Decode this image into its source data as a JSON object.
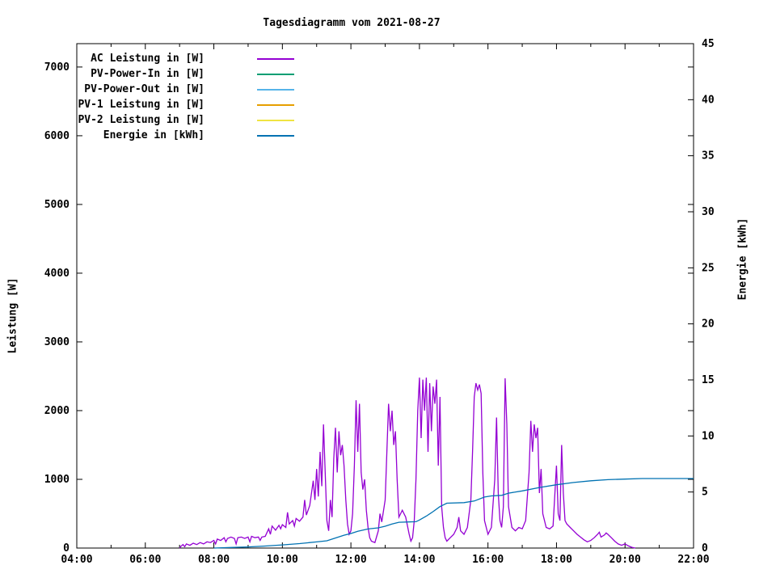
{
  "title": "Tagesdiagramm vom 2021-08-27",
  "chart_data": {
    "type": "line",
    "title": "Tagesdiagramm vom 2021-08-27",
    "xlabel": "",
    "ylabel_left": "Leistung [W]",
    "ylabel_right": "Energie [kWh]",
    "x_range_hours": [
      4,
      22
    ],
    "y_left_range": [
      0,
      7340
    ],
    "y_right_range": [
      0,
      45
    ],
    "grid": false,
    "legend_position": "top-left-inside",
    "x_tick_hours": [
      4,
      6,
      8,
      10,
      12,
      14,
      16,
      18,
      20,
      22
    ],
    "x_tick_labels": [
      "04:00",
      "06:00",
      "08:00",
      "10:00",
      "12:00",
      "14:00",
      "16:00",
      "18:00",
      "20:00",
      "22:00"
    ],
    "x_minor_hours": [
      5,
      7,
      9,
      11,
      13,
      15,
      17,
      19,
      21
    ],
    "y_left_ticks": [
      0,
      1000,
      2000,
      3000,
      4000,
      5000,
      6000,
      7000
    ],
    "y_right_ticks": [
      0,
      5,
      10,
      15,
      20,
      25,
      30,
      35,
      40,
      45
    ],
    "legend": [
      {
        "label": "AC Leistung in [W]",
        "color": "#9400D3"
      },
      {
        "label": "PV-Power-In in [W]",
        "color": "#009E73"
      },
      {
        "label": "PV-Power-Out in [W]",
        "color": "#56B4E9"
      },
      {
        "label": "PV-1 Leistung in [W]",
        "color": "#E69F00"
      },
      {
        "label": "PV-2 Leistung in [W]",
        "color": "#F0E442"
      },
      {
        "label": "Energie in [kWh]",
        "color": "#0072B2"
      }
    ],
    "series": [
      {
        "name": "AC Leistung in [W]",
        "color": "#9400D3",
        "axis": "left",
        "points": [
          [
            7.0,
            0
          ],
          [
            7.05,
            30
          ],
          [
            7.1,
            50
          ],
          [
            7.15,
            20
          ],
          [
            7.2,
            60
          ],
          [
            7.3,
            40
          ],
          [
            7.4,
            70
          ],
          [
            7.5,
            50
          ],
          [
            7.6,
            80
          ],
          [
            7.7,
            60
          ],
          [
            7.8,
            90
          ],
          [
            7.9,
            80
          ],
          [
            8.0,
            110
          ],
          [
            8.05,
            60
          ],
          [
            8.1,
            130
          ],
          [
            8.2,
            110
          ],
          [
            8.3,
            150
          ],
          [
            8.35,
            90
          ],
          [
            8.4,
            140
          ],
          [
            8.5,
            160
          ],
          [
            8.6,
            140
          ],
          [
            8.65,
            60
          ],
          [
            8.7,
            150
          ],
          [
            8.8,
            160
          ],
          [
            8.9,
            140
          ],
          [
            9.0,
            160
          ],
          [
            9.05,
            90
          ],
          [
            9.1,
            170
          ],
          [
            9.2,
            150
          ],
          [
            9.3,
            160
          ],
          [
            9.35,
            110
          ],
          [
            9.4,
            160
          ],
          [
            9.5,
            170
          ],
          [
            9.6,
            280
          ],
          [
            9.65,
            200
          ],
          [
            9.7,
            320
          ],
          [
            9.8,
            260
          ],
          [
            9.9,
            330
          ],
          [
            9.95,
            280
          ],
          [
            10.0,
            340
          ],
          [
            10.1,
            300
          ],
          [
            10.15,
            520
          ],
          [
            10.2,
            350
          ],
          [
            10.3,
            400
          ],
          [
            10.35,
            320
          ],
          [
            10.4,
            430
          ],
          [
            10.5,
            390
          ],
          [
            10.6,
            450
          ],
          [
            10.65,
            700
          ],
          [
            10.7,
            480
          ],
          [
            10.8,
            620
          ],
          [
            10.9,
            980
          ],
          [
            10.95,
            700
          ],
          [
            11.0,
            1150
          ],
          [
            11.05,
            750
          ],
          [
            11.1,
            1400
          ],
          [
            11.15,
            900
          ],
          [
            11.2,
            1800
          ],
          [
            11.25,
            1100
          ],
          [
            11.3,
            400
          ],
          [
            11.35,
            250
          ],
          [
            11.4,
            700
          ],
          [
            11.45,
            450
          ],
          [
            11.5,
            1300
          ],
          [
            11.55,
            1750
          ],
          [
            11.6,
            1100
          ],
          [
            11.65,
            1700
          ],
          [
            11.7,
            1350
          ],
          [
            11.75,
            1500
          ],
          [
            11.8,
            1200
          ],
          [
            11.85,
            700
          ],
          [
            11.9,
            350
          ],
          [
            11.95,
            200
          ],
          [
            12.0,
            250
          ],
          [
            12.05,
            500
          ],
          [
            12.1,
            1200
          ],
          [
            12.15,
            2150
          ],
          [
            12.2,
            1400
          ],
          [
            12.25,
            2100
          ],
          [
            12.3,
            1100
          ],
          [
            12.35,
            850
          ],
          [
            12.4,
            1000
          ],
          [
            12.45,
            550
          ],
          [
            12.5,
            300
          ],
          [
            12.55,
            150
          ],
          [
            12.6,
            100
          ],
          [
            12.7,
            80
          ],
          [
            12.8,
            250
          ],
          [
            12.85,
            500
          ],
          [
            12.9,
            380
          ],
          [
            13.0,
            700
          ],
          [
            13.05,
            1400
          ],
          [
            13.1,
            2100
          ],
          [
            13.15,
            1700
          ],
          [
            13.2,
            2000
          ],
          [
            13.25,
            1500
          ],
          [
            13.3,
            1700
          ],
          [
            13.35,
            1000
          ],
          [
            13.4,
            450
          ],
          [
            13.5,
            550
          ],
          [
            13.6,
            450
          ],
          [
            13.7,
            200
          ],
          [
            13.75,
            100
          ],
          [
            13.8,
            150
          ],
          [
            13.85,
            400
          ],
          [
            13.9,
            1000
          ],
          [
            13.95,
            2000
          ],
          [
            14.0,
            2480
          ],
          [
            14.05,
            1600
          ],
          [
            14.1,
            2450
          ],
          [
            14.15,
            2000
          ],
          [
            14.2,
            2480
          ],
          [
            14.25,
            1400
          ],
          [
            14.3,
            2400
          ],
          [
            14.35,
            1700
          ],
          [
            14.4,
            2350
          ],
          [
            14.45,
            2100
          ],
          [
            14.5,
            2450
          ],
          [
            14.55,
            1200
          ],
          [
            14.6,
            2200
          ],
          [
            14.65,
            600
          ],
          [
            14.7,
            300
          ],
          [
            14.75,
            150
          ],
          [
            14.8,
            100
          ],
          [
            14.9,
            150
          ],
          [
            15.0,
            200
          ],
          [
            15.1,
            300
          ],
          [
            15.15,
            450
          ],
          [
            15.2,
            250
          ],
          [
            15.3,
            200
          ],
          [
            15.4,
            300
          ],
          [
            15.5,
            700
          ],
          [
            15.55,
            1400
          ],
          [
            15.6,
            2200
          ],
          [
            15.65,
            2400
          ],
          [
            15.7,
            2300
          ],
          [
            15.75,
            2380
          ],
          [
            15.8,
            2250
          ],
          [
            15.85,
            1100
          ],
          [
            15.9,
            400
          ],
          [
            16.0,
            200
          ],
          [
            16.1,
            300
          ],
          [
            16.2,
            1000
          ],
          [
            16.25,
            1900
          ],
          [
            16.3,
            800
          ],
          [
            16.35,
            400
          ],
          [
            16.4,
            300
          ],
          [
            16.45,
            600
          ],
          [
            16.5,
            2470
          ],
          [
            16.55,
            1800
          ],
          [
            16.6,
            600
          ],
          [
            16.7,
            300
          ],
          [
            16.8,
            250
          ],
          [
            16.9,
            300
          ],
          [
            17.0,
            280
          ],
          [
            17.1,
            400
          ],
          [
            17.2,
            1100
          ],
          [
            17.25,
            1850
          ],
          [
            17.3,
            1400
          ],
          [
            17.35,
            1800
          ],
          [
            17.4,
            1600
          ],
          [
            17.45,
            1750
          ],
          [
            17.5,
            800
          ],
          [
            17.55,
            1150
          ],
          [
            17.6,
            500
          ],
          [
            17.7,
            300
          ],
          [
            17.8,
            280
          ],
          [
            17.9,
            320
          ],
          [
            18.0,
            1200
          ],
          [
            18.05,
            500
          ],
          [
            18.1,
            400
          ],
          [
            18.15,
            1500
          ],
          [
            18.2,
            800
          ],
          [
            18.25,
            400
          ],
          [
            18.3,
            350
          ],
          [
            18.4,
            300
          ],
          [
            18.5,
            250
          ],
          [
            18.6,
            200
          ],
          [
            18.7,
            160
          ],
          [
            18.8,
            120
          ],
          [
            18.9,
            90
          ],
          [
            19.0,
            110
          ],
          [
            19.1,
            150
          ],
          [
            19.2,
            200
          ],
          [
            19.25,
            230
          ],
          [
            19.3,
            160
          ],
          [
            19.4,
            190
          ],
          [
            19.45,
            220
          ],
          [
            19.5,
            200
          ],
          [
            19.6,
            150
          ],
          [
            19.7,
            100
          ],
          [
            19.8,
            60
          ],
          [
            19.9,
            40
          ],
          [
            20.0,
            60
          ],
          [
            20.1,
            30
          ],
          [
            20.2,
            10
          ],
          [
            20.3,
            0
          ]
        ]
      },
      {
        "name": "PV-Power-In in [W]",
        "color": "#009E73",
        "axis": "left",
        "points": []
      },
      {
        "name": "PV-Power-Out in [W]",
        "color": "#56B4E9",
        "axis": "left",
        "points": []
      },
      {
        "name": "PV-1 Leistung in [W]",
        "color": "#E69F00",
        "axis": "left",
        "points": []
      },
      {
        "name": "PV-2 Leistung in [W]",
        "color": "#F0E442",
        "axis": "left",
        "points": []
      },
      {
        "name": "Energie in [kWh]",
        "color": "#0072B2",
        "axis": "right",
        "points": [
          [
            8.0,
            0.0
          ],
          [
            8.5,
            0.05
          ],
          [
            9.0,
            0.1
          ],
          [
            9.5,
            0.18
          ],
          [
            10.0,
            0.28
          ],
          [
            10.5,
            0.4
          ],
          [
            11.0,
            0.55
          ],
          [
            11.3,
            0.65
          ],
          [
            11.5,
            0.85
          ],
          [
            11.8,
            1.15
          ],
          [
            12.0,
            1.3
          ],
          [
            12.2,
            1.5
          ],
          [
            12.5,
            1.7
          ],
          [
            12.8,
            1.8
          ],
          [
            13.0,
            1.95
          ],
          [
            13.2,
            2.15
          ],
          [
            13.4,
            2.3
          ],
          [
            13.9,
            2.35
          ],
          [
            14.0,
            2.5
          ],
          [
            14.2,
            2.85
          ],
          [
            14.4,
            3.25
          ],
          [
            14.6,
            3.7
          ],
          [
            14.8,
            4.0
          ],
          [
            15.3,
            4.05
          ],
          [
            15.6,
            4.2
          ],
          [
            15.9,
            4.55
          ],
          [
            16.1,
            4.65
          ],
          [
            16.4,
            4.7
          ],
          [
            16.6,
            4.9
          ],
          [
            17.0,
            5.1
          ],
          [
            17.5,
            5.4
          ],
          [
            18.0,
            5.65
          ],
          [
            18.5,
            5.85
          ],
          [
            19.0,
            6.0
          ],
          [
            19.5,
            6.1
          ],
          [
            20.0,
            6.15
          ],
          [
            20.5,
            6.2
          ],
          [
            21.0,
            6.2
          ],
          [
            21.5,
            6.2
          ],
          [
            22.0,
            6.2
          ]
        ]
      }
    ]
  }
}
